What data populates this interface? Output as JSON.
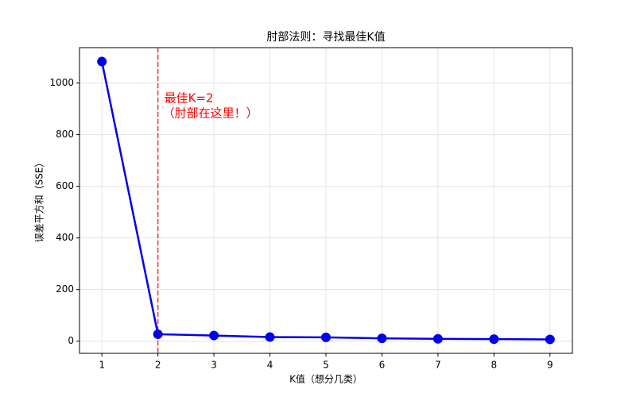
{
  "chart_data": {
    "type": "line",
    "title": "肘部法则：寻找最佳K值",
    "x_label": "K值（想分几类）",
    "y_label": "误差平方和（SSE）",
    "x": [
      1,
      2,
      3,
      4,
      5,
      6,
      7,
      8,
      9
    ],
    "series": [
      {
        "color": "#0000ee",
        "values": [
          1083,
          27,
          22,
          16,
          15,
          11,
          9,
          8,
          7
        ]
      }
    ],
    "xlim": [
      0.6,
      9.4
    ],
    "xticks": [
      1,
      2,
      3,
      4,
      5,
      6,
      7,
      8,
      9
    ],
    "ylim": [
      -47,
      1137
    ],
    "yticks": [
      0,
      200,
      400,
      600,
      800,
      1000
    ],
    "grid": true,
    "vline": {
      "x": 2,
      "color": "#ff0000"
    },
    "annotation": {
      "lines": [
        "最佳K=2",
        "（肘部在这里！）"
      ],
      "color": "#ff0000"
    }
  }
}
